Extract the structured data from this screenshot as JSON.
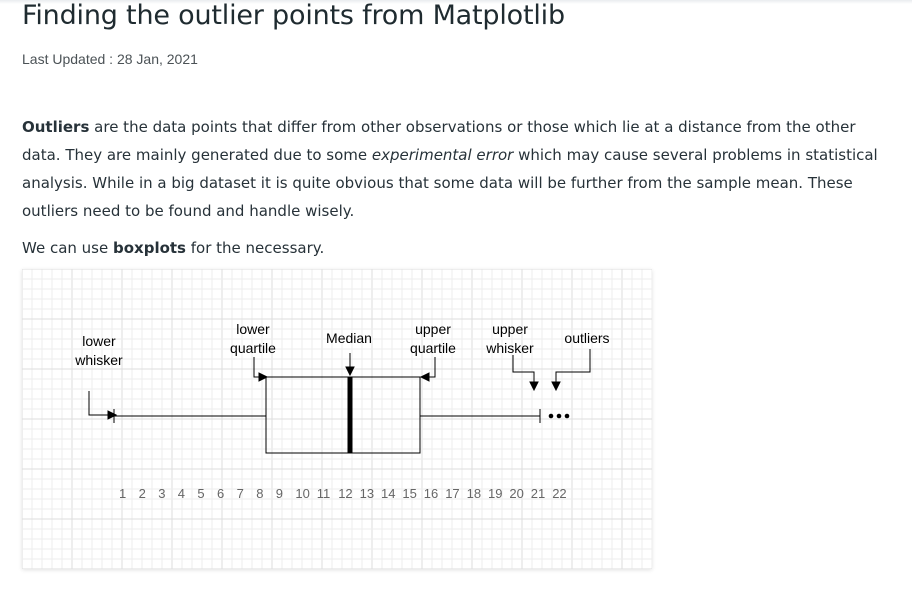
{
  "article": {
    "title": "Finding the outlier points from Matplotlib",
    "updated": "Last Updated : 28 Jan, 2021",
    "para1": {
      "term": "Outliers",
      "text_a": " are the data points that differ from other observations or those which lie at a distance from the other data. They are mainly generated due to some ",
      "emph": "experimental error",
      "text_b": " which may cause several problems in statistical analysis. While in a big dataset it is quite obvious that some data will be further from the sample mean. These outliers need to be found and handle wisely."
    },
    "para2": {
      "text_a": "We can use ",
      "bold": "boxplots",
      "text_b": " for the necessary."
    }
  },
  "diagram": {
    "labels": {
      "lower_whisker": [
        "lower",
        "whisker"
      ],
      "lower_quartile": [
        "lower",
        "quartile"
      ],
      "median": "Median",
      "upper_quartile": [
        "upper",
        "quartile"
      ],
      "upper_whisker": [
        "upper",
        "whisker"
      ],
      "outliers": "outliers"
    },
    "ticks": [
      "1",
      "2",
      "3",
      "4",
      "5",
      "6",
      "7",
      "8",
      "9",
      "10",
      "11",
      "12",
      "13",
      "14",
      "15",
      "16",
      "17",
      "18",
      "19",
      "20",
      "21",
      "22"
    ],
    "colors": {
      "grid_minor": "#eeeeee",
      "grid_major": "#dedede",
      "ink": "#000000",
      "tick_text": "#666666"
    }
  }
}
